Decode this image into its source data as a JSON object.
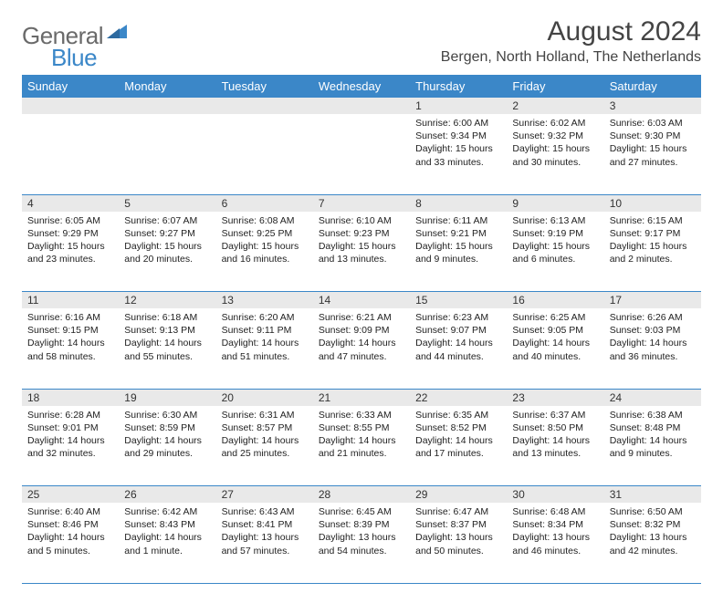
{
  "logo": {
    "general": "General",
    "blue": "Blue"
  },
  "title": "August 2024",
  "location": "Bergen, North Holland, The Netherlands",
  "colors": {
    "header_bg": "#3b87c8",
    "header_text": "#ffffff",
    "daynum_bg": "#e9e9e9",
    "rule": "#3b87c8",
    "logo_gray": "#6a6a6a",
    "logo_blue": "#3b87c8"
  },
  "day_headers": [
    "Sunday",
    "Monday",
    "Tuesday",
    "Wednesday",
    "Thursday",
    "Friday",
    "Saturday"
  ],
  "weeks": [
    [
      null,
      null,
      null,
      null,
      {
        "n": "1",
        "sr": "Sunrise: 6:00 AM",
        "ss": "Sunset: 9:34 PM",
        "dl1": "Daylight: 15 hours",
        "dl2": "and 33 minutes."
      },
      {
        "n": "2",
        "sr": "Sunrise: 6:02 AM",
        "ss": "Sunset: 9:32 PM",
        "dl1": "Daylight: 15 hours",
        "dl2": "and 30 minutes."
      },
      {
        "n": "3",
        "sr": "Sunrise: 6:03 AM",
        "ss": "Sunset: 9:30 PM",
        "dl1": "Daylight: 15 hours",
        "dl2": "and 27 minutes."
      }
    ],
    [
      {
        "n": "4",
        "sr": "Sunrise: 6:05 AM",
        "ss": "Sunset: 9:29 PM",
        "dl1": "Daylight: 15 hours",
        "dl2": "and 23 minutes."
      },
      {
        "n": "5",
        "sr": "Sunrise: 6:07 AM",
        "ss": "Sunset: 9:27 PM",
        "dl1": "Daylight: 15 hours",
        "dl2": "and 20 minutes."
      },
      {
        "n": "6",
        "sr": "Sunrise: 6:08 AM",
        "ss": "Sunset: 9:25 PM",
        "dl1": "Daylight: 15 hours",
        "dl2": "and 16 minutes."
      },
      {
        "n": "7",
        "sr": "Sunrise: 6:10 AM",
        "ss": "Sunset: 9:23 PM",
        "dl1": "Daylight: 15 hours",
        "dl2": "and 13 minutes."
      },
      {
        "n": "8",
        "sr": "Sunrise: 6:11 AM",
        "ss": "Sunset: 9:21 PM",
        "dl1": "Daylight: 15 hours",
        "dl2": "and 9 minutes."
      },
      {
        "n": "9",
        "sr": "Sunrise: 6:13 AM",
        "ss": "Sunset: 9:19 PM",
        "dl1": "Daylight: 15 hours",
        "dl2": "and 6 minutes."
      },
      {
        "n": "10",
        "sr": "Sunrise: 6:15 AM",
        "ss": "Sunset: 9:17 PM",
        "dl1": "Daylight: 15 hours",
        "dl2": "and 2 minutes."
      }
    ],
    [
      {
        "n": "11",
        "sr": "Sunrise: 6:16 AM",
        "ss": "Sunset: 9:15 PM",
        "dl1": "Daylight: 14 hours",
        "dl2": "and 58 minutes."
      },
      {
        "n": "12",
        "sr": "Sunrise: 6:18 AM",
        "ss": "Sunset: 9:13 PM",
        "dl1": "Daylight: 14 hours",
        "dl2": "and 55 minutes."
      },
      {
        "n": "13",
        "sr": "Sunrise: 6:20 AM",
        "ss": "Sunset: 9:11 PM",
        "dl1": "Daylight: 14 hours",
        "dl2": "and 51 minutes."
      },
      {
        "n": "14",
        "sr": "Sunrise: 6:21 AM",
        "ss": "Sunset: 9:09 PM",
        "dl1": "Daylight: 14 hours",
        "dl2": "and 47 minutes."
      },
      {
        "n": "15",
        "sr": "Sunrise: 6:23 AM",
        "ss": "Sunset: 9:07 PM",
        "dl1": "Daylight: 14 hours",
        "dl2": "and 44 minutes."
      },
      {
        "n": "16",
        "sr": "Sunrise: 6:25 AM",
        "ss": "Sunset: 9:05 PM",
        "dl1": "Daylight: 14 hours",
        "dl2": "and 40 minutes."
      },
      {
        "n": "17",
        "sr": "Sunrise: 6:26 AM",
        "ss": "Sunset: 9:03 PM",
        "dl1": "Daylight: 14 hours",
        "dl2": "and 36 minutes."
      }
    ],
    [
      {
        "n": "18",
        "sr": "Sunrise: 6:28 AM",
        "ss": "Sunset: 9:01 PM",
        "dl1": "Daylight: 14 hours",
        "dl2": "and 32 minutes."
      },
      {
        "n": "19",
        "sr": "Sunrise: 6:30 AM",
        "ss": "Sunset: 8:59 PM",
        "dl1": "Daylight: 14 hours",
        "dl2": "and 29 minutes."
      },
      {
        "n": "20",
        "sr": "Sunrise: 6:31 AM",
        "ss": "Sunset: 8:57 PM",
        "dl1": "Daylight: 14 hours",
        "dl2": "and 25 minutes."
      },
      {
        "n": "21",
        "sr": "Sunrise: 6:33 AM",
        "ss": "Sunset: 8:55 PM",
        "dl1": "Daylight: 14 hours",
        "dl2": "and 21 minutes."
      },
      {
        "n": "22",
        "sr": "Sunrise: 6:35 AM",
        "ss": "Sunset: 8:52 PM",
        "dl1": "Daylight: 14 hours",
        "dl2": "and 17 minutes."
      },
      {
        "n": "23",
        "sr": "Sunrise: 6:37 AM",
        "ss": "Sunset: 8:50 PM",
        "dl1": "Daylight: 14 hours",
        "dl2": "and 13 minutes."
      },
      {
        "n": "24",
        "sr": "Sunrise: 6:38 AM",
        "ss": "Sunset: 8:48 PM",
        "dl1": "Daylight: 14 hours",
        "dl2": "and 9 minutes."
      }
    ],
    [
      {
        "n": "25",
        "sr": "Sunrise: 6:40 AM",
        "ss": "Sunset: 8:46 PM",
        "dl1": "Daylight: 14 hours",
        "dl2": "and 5 minutes."
      },
      {
        "n": "26",
        "sr": "Sunrise: 6:42 AM",
        "ss": "Sunset: 8:43 PM",
        "dl1": "Daylight: 14 hours",
        "dl2": "and 1 minute."
      },
      {
        "n": "27",
        "sr": "Sunrise: 6:43 AM",
        "ss": "Sunset: 8:41 PM",
        "dl1": "Daylight: 13 hours",
        "dl2": "and 57 minutes."
      },
      {
        "n": "28",
        "sr": "Sunrise: 6:45 AM",
        "ss": "Sunset: 8:39 PM",
        "dl1": "Daylight: 13 hours",
        "dl2": "and 54 minutes."
      },
      {
        "n": "29",
        "sr": "Sunrise: 6:47 AM",
        "ss": "Sunset: 8:37 PM",
        "dl1": "Daylight: 13 hours",
        "dl2": "and 50 minutes."
      },
      {
        "n": "30",
        "sr": "Sunrise: 6:48 AM",
        "ss": "Sunset: 8:34 PM",
        "dl1": "Daylight: 13 hours",
        "dl2": "and 46 minutes."
      },
      {
        "n": "31",
        "sr": "Sunrise: 6:50 AM",
        "ss": "Sunset: 8:32 PM",
        "dl1": "Daylight: 13 hours",
        "dl2": "and 42 minutes."
      }
    ]
  ]
}
